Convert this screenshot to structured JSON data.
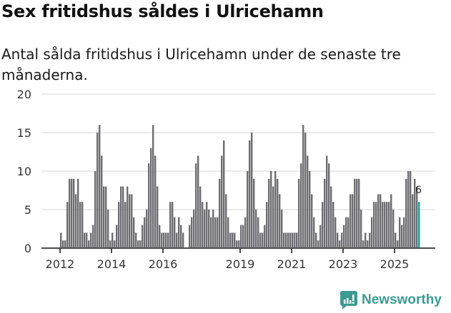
{
  "header": {
    "title": "Sex fritidshus såldes i Ulricehamn",
    "subtitle": "Antal sålda fritidshus i Ulricehamn under de senaste tre månaderna."
  },
  "brand": {
    "name": "Newsworthy",
    "icon": "newsworthy-logo-icon",
    "color": "#3a9b93"
  },
  "colors": {
    "bar": "#6d6c72",
    "highlight": "#13a39a",
    "grid": "#e3e3e3",
    "axis": "#4a4a4a"
  },
  "chart_data": {
    "type": "bar",
    "title": "Sex fritidshus såldes i Ulricehamn",
    "subtitle": "Antal sålda fritidshus i Ulricehamn under de senaste tre månaderna.",
    "xlabel": "",
    "ylabel": "",
    "ylim": [
      0,
      20
    ],
    "yticks": [
      0,
      5,
      10,
      15,
      20
    ],
    "xticks": [
      "2012",
      "2014",
      "2016",
      "2019",
      "2021",
      "2023",
      "2025"
    ],
    "grid": true,
    "legend": null,
    "frequency": "monthly",
    "start": "2012-01",
    "annotation": {
      "label": "6",
      "target": "last bar"
    },
    "values": [
      2,
      1,
      1,
      6,
      9,
      9,
      9,
      7,
      9,
      6,
      6,
      2,
      2,
      1,
      2,
      3,
      10,
      15,
      16,
      12,
      8,
      8,
      5,
      1,
      2,
      1,
      3,
      6,
      8,
      8,
      6,
      8,
      7,
      7,
      4,
      2,
      1,
      1,
      3,
      4,
      5,
      11,
      13,
      16,
      12,
      8,
      3,
      2,
      2,
      2,
      2,
      6,
      6,
      4,
      2,
      4,
      3,
      2,
      0,
      0,
      3,
      4,
      5,
      11,
      12,
      8,
      6,
      5,
      6,
      5,
      4,
      5,
      4,
      4,
      9,
      12,
      14,
      7,
      4,
      2,
      2,
      2,
      1,
      1,
      3,
      3,
      4,
      10,
      14,
      15,
      9,
      5,
      4,
      2,
      2,
      3,
      6,
      9,
      10,
      8,
      10,
      9,
      7,
      5,
      2,
      2,
      2,
      2,
      2,
      2,
      2,
      9,
      11,
      16,
      15,
      12,
      10,
      7,
      4,
      2,
      1,
      3,
      6,
      9,
      12,
      11,
      8,
      6,
      4,
      2,
      1,
      2,
      3,
      4,
      4,
      7,
      7,
      9,
      9,
      9,
      5,
      1,
      2,
      1,
      2,
      4,
      6,
      6,
      7,
      7,
      6,
      6,
      6,
      6,
      7,
      5,
      2,
      1,
      4,
      3,
      4,
      9,
      10,
      10,
      7,
      9,
      8,
      6
    ]
  }
}
